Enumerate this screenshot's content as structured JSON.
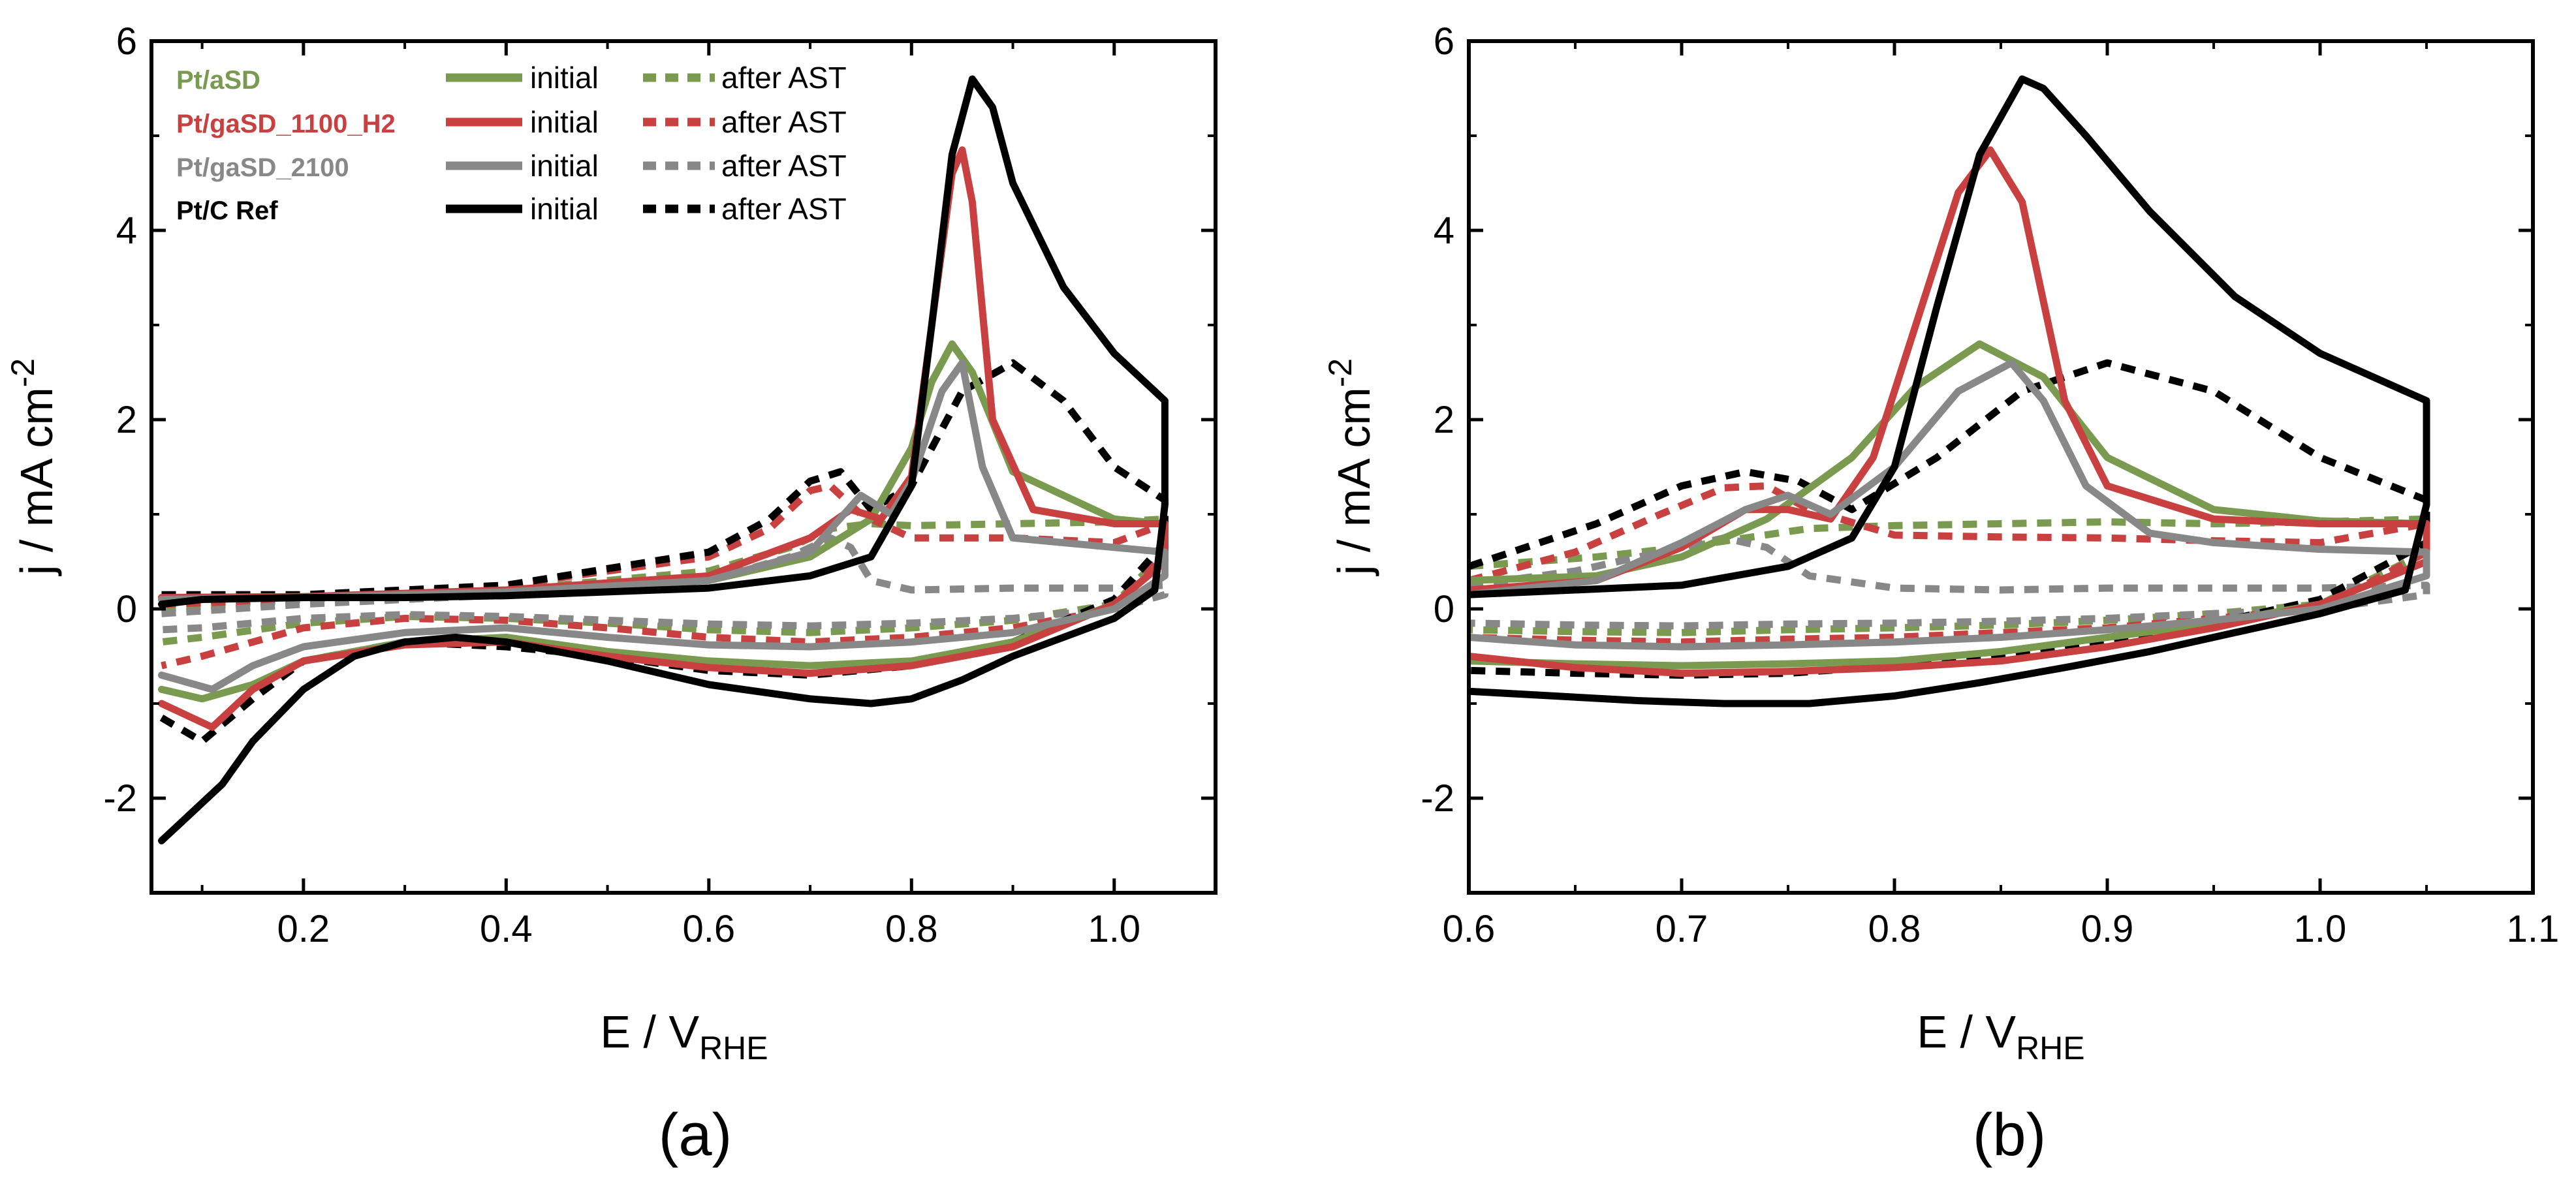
{
  "figure": {
    "panel_labels": [
      "(a)",
      "(b)"
    ]
  },
  "legend": {
    "entries": [
      {
        "name": "Pt/aSD",
        "color": "#7a9a4f",
        "solid_label": "initial",
        "dashed_label": "after AST"
      },
      {
        "name": "Pt/gaSD_1100_H2",
        "color": "#c8403f",
        "solid_label": "initial",
        "dashed_label": "after AST"
      },
      {
        "name": "Pt/gaSD_2100",
        "color": "#888888",
        "solid_label": "initial",
        "dashed_label": "after AST"
      },
      {
        "name": "Pt/C Ref",
        "color": "#000000",
        "solid_label": "initial",
        "dashed_label": "after AST"
      }
    ]
  },
  "chart_data": [
    {
      "type": "line",
      "panel": "(a)",
      "xlabel": "E / V",
      "xlabel_sub": "RHE",
      "ylabel": "j / mA cm",
      "ylabel_sup": "-2",
      "xlim": [
        0.05,
        1.1
      ],
      "ylim": [
        -3,
        6
      ],
      "xticks": [
        0.2,
        0.4,
        0.6,
        0.8,
        1.0
      ],
      "xtick_labels": [
        "0.2",
        "0.4",
        "0.6",
        "0.8",
        "1.0"
      ],
      "yticks": [
        -2,
        0,
        2,
        4,
        6
      ],
      "ytick_labels": [
        "-2",
        "0",
        "2",
        "4",
        "6"
      ],
      "grid": false,
      "legend_position": "top-left",
      "series": [
        {
          "name": "Pt/aSD",
          "style": "initial",
          "color": "#7a9a4f",
          "x": [
            0.06,
            0.2,
            0.4,
            0.6,
            0.7,
            0.76,
            0.8,
            0.82,
            0.84,
            0.86,
            0.9,
            1.0,
            1.05,
            1.05,
            1.0,
            0.9,
            0.8,
            0.7,
            0.6,
            0.5,
            0.4,
            0.3,
            0.2,
            0.15,
            0.1,
            0.06
          ],
          "y": [
            0.12,
            0.13,
            0.18,
            0.3,
            0.55,
            0.95,
            1.7,
            2.4,
            2.8,
            2.5,
            1.45,
            0.95,
            0.9,
            0.5,
            0.05,
            -0.35,
            -0.55,
            -0.6,
            -0.55,
            -0.45,
            -0.3,
            -0.35,
            -0.55,
            -0.8,
            -0.95,
            -0.85
          ]
        },
        {
          "name": "Pt/aSD",
          "style": "after AST",
          "color": "#7a9a4f",
          "x": [
            0.06,
            0.2,
            0.4,
            0.6,
            0.68,
            0.72,
            0.76,
            0.8,
            0.9,
            1.0,
            1.05,
            1.05,
            1.0,
            0.9,
            0.8,
            0.7,
            0.6,
            0.5,
            0.4,
            0.3,
            0.2,
            0.1,
            0.06
          ],
          "y": [
            0.0,
            0.1,
            0.2,
            0.4,
            0.65,
            0.85,
            0.9,
            0.88,
            0.9,
            0.92,
            0.95,
            0.6,
            0.05,
            -0.12,
            -0.2,
            -0.25,
            -0.22,
            -0.15,
            -0.1,
            -0.08,
            -0.15,
            -0.3,
            -0.35
          ]
        },
        {
          "name": "Pt/gaSD_1100_H2",
          "style": "initial",
          "color": "#c8403f",
          "x": [
            0.06,
            0.2,
            0.4,
            0.6,
            0.7,
            0.74,
            0.77,
            0.8,
            0.82,
            0.84,
            0.85,
            0.86,
            0.88,
            0.92,
            1.0,
            1.05,
            1.05,
            1.0,
            0.9,
            0.8,
            0.7,
            0.6,
            0.5,
            0.4,
            0.3,
            0.2,
            0.15,
            0.11,
            0.06
          ],
          "y": [
            0.12,
            0.13,
            0.2,
            0.35,
            0.75,
            1.05,
            0.95,
            1.4,
            3.0,
            4.6,
            4.85,
            4.3,
            2.0,
            1.05,
            0.9,
            0.9,
            0.5,
            0.05,
            -0.4,
            -0.6,
            -0.68,
            -0.62,
            -0.5,
            -0.35,
            -0.38,
            -0.55,
            -0.85,
            -1.25,
            -1.0
          ]
        },
        {
          "name": "Pt/gaSD_1100_H2",
          "style": "after AST",
          "color": "#c8403f",
          "x": [
            0.06,
            0.2,
            0.4,
            0.6,
            0.66,
            0.7,
            0.72,
            0.75,
            0.8,
            0.9,
            1.0,
            1.05,
            1.05,
            1.0,
            0.9,
            0.8,
            0.7,
            0.6,
            0.5,
            0.4,
            0.3,
            0.2,
            0.1,
            0.06
          ],
          "y": [
            0.05,
            0.1,
            0.25,
            0.55,
            0.85,
            1.25,
            1.3,
            1.0,
            0.75,
            0.75,
            0.7,
            0.9,
            0.6,
            0.0,
            -0.2,
            -0.3,
            -0.35,
            -0.3,
            -0.2,
            -0.12,
            -0.1,
            -0.2,
            -0.5,
            -0.6
          ]
        },
        {
          "name": "Pt/gaSD_2100",
          "style": "initial",
          "color": "#888888",
          "x": [
            0.06,
            0.2,
            0.4,
            0.6,
            0.7,
            0.75,
            0.78,
            0.8,
            0.83,
            0.85,
            0.87,
            0.9,
            1.0,
            1.05,
            1.05,
            1.0,
            0.9,
            0.8,
            0.7,
            0.6,
            0.5,
            0.4,
            0.3,
            0.2,
            0.15,
            0.11,
            0.06
          ],
          "y": [
            0.1,
            0.12,
            0.18,
            0.3,
            0.6,
            1.2,
            1.0,
            1.35,
            2.3,
            2.6,
            1.5,
            0.75,
            0.65,
            0.6,
            0.35,
            0.0,
            -0.25,
            -0.35,
            -0.4,
            -0.38,
            -0.3,
            -0.2,
            -0.25,
            -0.4,
            -0.6,
            -0.85,
            -0.7
          ]
        },
        {
          "name": "Pt/gaSD_2100",
          "style": "after AST",
          "color": "#888888",
          "x": [
            0.06,
            0.2,
            0.4,
            0.6,
            0.68,
            0.72,
            0.74,
            0.76,
            0.8,
            0.9,
            1.0,
            1.05,
            1.05,
            1.0,
            0.9,
            0.8,
            0.7,
            0.6,
            0.5,
            0.4,
            0.3,
            0.2,
            0.1,
            0.06
          ],
          "y": [
            -0.05,
            0.05,
            0.15,
            0.3,
            0.55,
            0.75,
            0.65,
            0.3,
            0.2,
            0.22,
            0.22,
            0.25,
            0.15,
            0.0,
            -0.1,
            -0.15,
            -0.18,
            -0.16,
            -0.12,
            -0.08,
            -0.06,
            -0.1,
            -0.2,
            -0.22
          ]
        },
        {
          "name": "Pt/C Ref",
          "style": "initial",
          "color": "#000000",
          "x": [
            0.06,
            0.1,
            0.2,
            0.3,
            0.4,
            0.5,
            0.6,
            0.7,
            0.76,
            0.8,
            0.82,
            0.84,
            0.86,
            0.88,
            0.9,
            0.95,
            1.0,
            1.05,
            1.05,
            1.04,
            1.0,
            0.95,
            0.9,
            0.85,
            0.8,
            0.76,
            0.7,
            0.6,
            0.5,
            0.4,
            0.35,
            0.3,
            0.25,
            0.2,
            0.15,
            0.12,
            0.08,
            0.06
          ],
          "y": [
            0.05,
            0.1,
            0.12,
            0.12,
            0.14,
            0.18,
            0.22,
            0.35,
            0.55,
            1.3,
            3.0,
            4.8,
            5.6,
            5.3,
            4.5,
            3.4,
            2.7,
            2.2,
            1.1,
            0.2,
            -0.1,
            -0.3,
            -0.5,
            -0.75,
            -0.95,
            -1.0,
            -0.95,
            -0.8,
            -0.55,
            -0.35,
            -0.3,
            -0.35,
            -0.5,
            -0.85,
            -1.4,
            -1.85,
            -2.25,
            -2.45
          ]
        },
        {
          "name": "Pt/C Ref",
          "style": "after AST",
          "color": "#000000",
          "x": [
            0.06,
            0.2,
            0.4,
            0.6,
            0.66,
            0.7,
            0.73,
            0.76,
            0.8,
            0.85,
            0.9,
            0.95,
            1.0,
            1.05,
            1.05,
            1.0,
            0.9,
            0.8,
            0.7,
            0.6,
            0.5,
            0.4,
            0.3,
            0.2,
            0.15,
            0.1,
            0.06
          ],
          "y": [
            0.15,
            0.15,
            0.25,
            0.6,
            0.95,
            1.35,
            1.45,
            1.05,
            1.3,
            2.3,
            2.6,
            2.2,
            1.5,
            1.15,
            0.7,
            0.1,
            -0.35,
            -0.6,
            -0.7,
            -0.65,
            -0.5,
            -0.4,
            -0.35,
            -0.55,
            -0.95,
            -1.4,
            -1.15
          ]
        }
      ]
    },
    {
      "type": "line",
      "panel": "(b)",
      "xlabel": "E / V",
      "xlabel_sub": "RHE",
      "ylabel": "j / mA cm",
      "ylabel_sup": "-2",
      "xlim": [
        0.6,
        1.1
      ],
      "ylim": [
        -3,
        6
      ],
      "xticks": [
        0.6,
        0.7,
        0.8,
        0.9,
        1.0,
        1.1
      ],
      "xtick_labels": [
        "0.6",
        "0.7",
        "0.8",
        "0.9",
        "1.0",
        "1.1"
      ],
      "yticks": [
        -2,
        0,
        2,
        4,
        6
      ],
      "ytick_labels": [
        "-2",
        "0",
        "2",
        "4",
        "6"
      ],
      "grid": false,
      "series": [
        {
          "name": "Pt/aSD",
          "style": "initial",
          "color": "#7a9a4f",
          "x": [
            0.6,
            0.66,
            0.7,
            0.74,
            0.78,
            0.81,
            0.84,
            0.87,
            0.9,
            0.95,
            1.0,
            1.05,
            1.05,
            1.0,
            0.95,
            0.9,
            0.85,
            0.8,
            0.75,
            0.7,
            0.65,
            0.6
          ],
          "y": [
            0.3,
            0.35,
            0.55,
            0.95,
            1.6,
            2.35,
            2.8,
            2.45,
            1.6,
            1.05,
            0.93,
            0.9,
            0.5,
            0.05,
            -0.15,
            -0.3,
            -0.45,
            -0.55,
            -0.58,
            -0.6,
            -0.58,
            -0.55
          ]
        },
        {
          "name": "Pt/aSD",
          "style": "after AST",
          "color": "#7a9a4f",
          "x": [
            0.6,
            0.66,
            0.7,
            0.73,
            0.76,
            0.8,
            0.85,
            0.9,
            0.95,
            1.0,
            1.05,
            1.05,
            1.0,
            0.95,
            0.9,
            0.85,
            0.8,
            0.75,
            0.7,
            0.65,
            0.6
          ],
          "y": [
            0.45,
            0.55,
            0.65,
            0.75,
            0.85,
            0.88,
            0.9,
            0.92,
            0.9,
            0.92,
            0.95,
            0.6,
            0.05,
            -0.05,
            -0.12,
            -0.17,
            -0.2,
            -0.22,
            -0.25,
            -0.24,
            -0.22
          ]
        },
        {
          "name": "Pt/gaSD_1100_H2",
          "style": "initial",
          "color": "#c8403f",
          "x": [
            0.6,
            0.66,
            0.7,
            0.73,
            0.75,
            0.77,
            0.79,
            0.81,
            0.83,
            0.845,
            0.86,
            0.88,
            0.9,
            0.95,
            1.0,
            1.05,
            1.05,
            1.0,
            0.95,
            0.9,
            0.85,
            0.8,
            0.75,
            0.7,
            0.65,
            0.6
          ],
          "y": [
            0.2,
            0.3,
            0.65,
            1.05,
            1.05,
            0.95,
            1.6,
            3.0,
            4.4,
            4.85,
            4.3,
            2.2,
            1.3,
            0.95,
            0.9,
            0.9,
            0.5,
            0.05,
            -0.2,
            -0.4,
            -0.55,
            -0.62,
            -0.66,
            -0.68,
            -0.62,
            -0.5
          ]
        },
        {
          "name": "Pt/gaSD_1100_H2",
          "style": "after AST",
          "color": "#c8403f",
          "x": [
            0.6,
            0.65,
            0.69,
            0.72,
            0.74,
            0.76,
            0.8,
            0.85,
            0.9,
            0.95,
            1.0,
            1.05,
            1.05,
            1.0,
            0.95,
            0.9,
            0.85,
            0.8,
            0.75,
            0.7,
            0.65,
            0.6
          ],
          "y": [
            0.3,
            0.6,
            1.0,
            1.28,
            1.3,
            1.05,
            0.78,
            0.76,
            0.75,
            0.72,
            0.7,
            0.9,
            0.6,
            0.0,
            -0.1,
            -0.2,
            -0.25,
            -0.3,
            -0.32,
            -0.35,
            -0.33,
            -0.3
          ]
        },
        {
          "name": "Pt/gaSD_2100",
          "style": "initial",
          "color": "#888888",
          "x": [
            0.6,
            0.66,
            0.7,
            0.73,
            0.75,
            0.77,
            0.8,
            0.83,
            0.855,
            0.87,
            0.89,
            0.92,
            0.95,
            1.0,
            1.05,
            1.05,
            1.0,
            0.95,
            0.9,
            0.85,
            0.8,
            0.75,
            0.7,
            0.65,
            0.6
          ],
          "y": [
            0.15,
            0.3,
            0.7,
            1.05,
            1.2,
            1.0,
            1.5,
            2.3,
            2.6,
            2.2,
            1.3,
            0.8,
            0.7,
            0.63,
            0.6,
            0.35,
            0.0,
            -0.12,
            -0.22,
            -0.3,
            -0.35,
            -0.38,
            -0.4,
            -0.38,
            -0.3
          ]
        },
        {
          "name": "Pt/gaSD_2100",
          "style": "after AST",
          "color": "#888888",
          "x": [
            0.6,
            0.65,
            0.69,
            0.72,
            0.74,
            0.76,
            0.8,
            0.85,
            0.9,
            0.95,
            1.0,
            1.05,
            1.05,
            1.0,
            0.95,
            0.9,
            0.85,
            0.8,
            0.75,
            0.7,
            0.65,
            0.6
          ],
          "y": [
            0.25,
            0.4,
            0.6,
            0.75,
            0.65,
            0.35,
            0.22,
            0.2,
            0.22,
            0.22,
            0.22,
            0.25,
            0.15,
            0.0,
            -0.05,
            -0.1,
            -0.13,
            -0.15,
            -0.16,
            -0.18,
            -0.17,
            -0.15
          ]
        },
        {
          "name": "Pt/C Ref",
          "style": "initial",
          "color": "#000000",
          "x": [
            0.6,
            0.7,
            0.75,
            0.78,
            0.8,
            0.82,
            0.84,
            0.86,
            0.87,
            0.89,
            0.92,
            0.96,
            1.0,
            1.05,
            1.05,
            1.04,
            1.0,
            0.96,
            0.92,
            0.88,
            0.84,
            0.8,
            0.76,
            0.72,
            0.68,
            0.64,
            0.6
          ],
          "y": [
            0.15,
            0.25,
            0.45,
            0.75,
            1.5,
            3.2,
            4.8,
            5.6,
            5.5,
            5.0,
            4.2,
            3.3,
            2.7,
            2.2,
            1.1,
            0.2,
            -0.05,
            -0.25,
            -0.45,
            -0.62,
            -0.78,
            -0.92,
            -1.0,
            -1.0,
            -0.97,
            -0.92,
            -0.87
          ]
        },
        {
          "name": "Pt/C Ref",
          "style": "after AST",
          "color": "#000000",
          "x": [
            0.6,
            0.66,
            0.7,
            0.73,
            0.755,
            0.78,
            0.82,
            0.86,
            0.9,
            0.95,
            1.0,
            1.05,
            1.05,
            1.0,
            0.95,
            0.9,
            0.85,
            0.8,
            0.75,
            0.7,
            0.65,
            0.6
          ],
          "y": [
            0.45,
            0.9,
            1.3,
            1.45,
            1.35,
            1.05,
            1.6,
            2.3,
            2.6,
            2.3,
            1.6,
            1.15,
            0.7,
            0.1,
            -0.15,
            -0.35,
            -0.5,
            -0.6,
            -0.68,
            -0.7,
            -0.68,
            -0.65
          ]
        }
      ]
    }
  ]
}
